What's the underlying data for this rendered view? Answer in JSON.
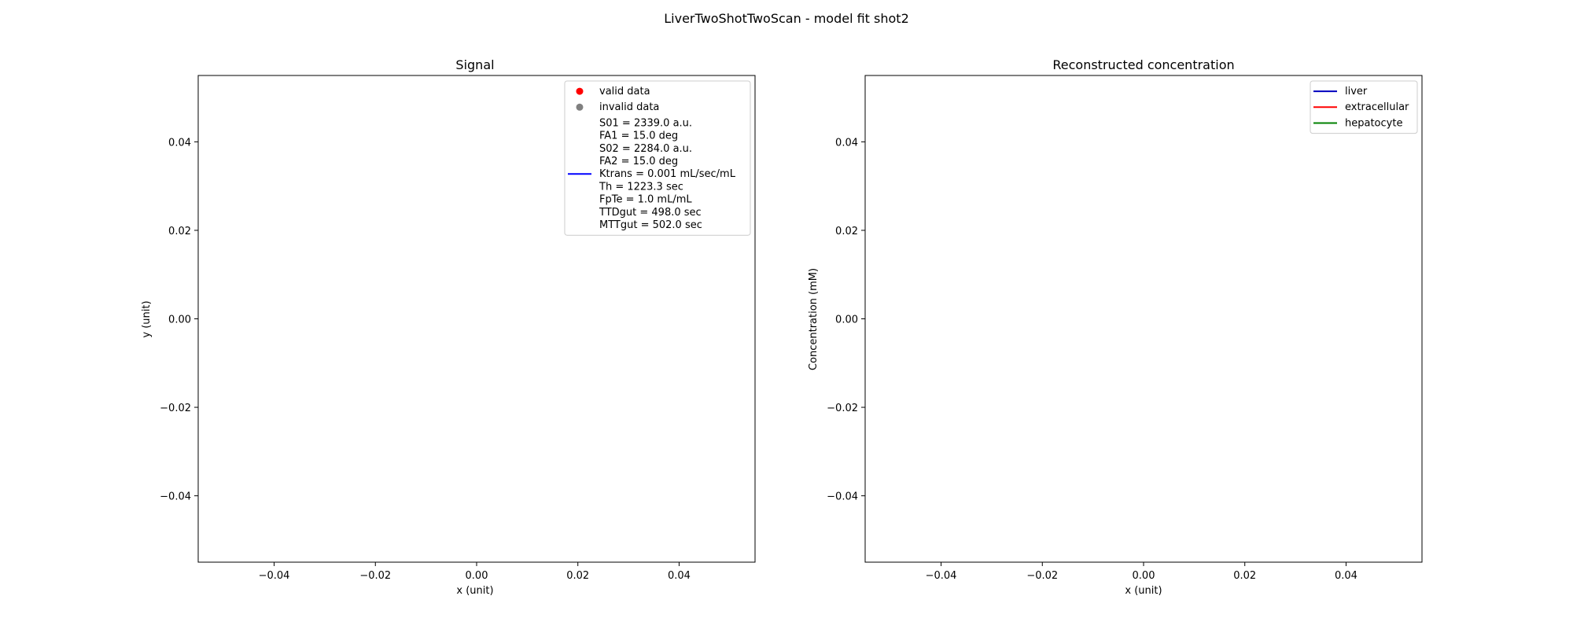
{
  "figure": {
    "suptitle": "LiverTwoShotTwoScan - model fit shot2"
  },
  "chart_data": [
    {
      "type": "scatter",
      "title": "Signal",
      "xlabel": "x (unit)",
      "ylabel": "y (unit)",
      "xlim": [
        -0.055,
        0.055
      ],
      "ylim": [
        -0.055,
        0.055
      ],
      "xticks": [
        -0.04,
        -0.02,
        0.0,
        0.02,
        0.04
      ],
      "yticks": [
        -0.04,
        -0.02,
        0.0,
        0.02,
        0.04
      ],
      "xtick_labels": [
        "−0.04",
        "−0.02",
        "0.00",
        "0.02",
        "0.04"
      ],
      "ytick_labels": [
        "−0.04",
        "−0.02",
        "0.00",
        "0.02",
        "0.04"
      ],
      "grid": false,
      "legend_position": "top-right",
      "series": [
        {
          "name": "valid data",
          "marker": "dot",
          "color": "#ff0000",
          "x": [],
          "y": []
        },
        {
          "name": "invalid data",
          "marker": "dot",
          "color": "#808080",
          "x": [],
          "y": []
        },
        {
          "name": "S01 = 2339.0 a.u.\nFA1 = 15.0 deg\nS02 = 2284.0 a.u.\nFA2 = 15.0 deg\nKtrans = 0.001 mL/sec/mL\nTh = 1223.3 sec\nFpTe = 1.0 mL/mL\nTTDgut = 498.0 sec\nMTTgut = 502.0 sec",
          "marker": "line",
          "color": "#0000ff",
          "x": [],
          "y": []
        }
      ]
    },
    {
      "type": "line",
      "title": "Reconstructed concentration",
      "xlabel": "x (unit)",
      "ylabel": "Concentration (mM)",
      "xlim": [
        -0.055,
        0.055
      ],
      "ylim": [
        -0.055,
        0.055
      ],
      "xticks": [
        -0.04,
        -0.02,
        0.0,
        0.02,
        0.04
      ],
      "yticks": [
        -0.04,
        -0.02,
        0.0,
        0.02,
        0.04
      ],
      "xtick_labels": [
        "−0.04",
        "−0.02",
        "0.00",
        "0.02",
        "0.04"
      ],
      "ytick_labels": [
        "−0.04",
        "−0.02",
        "0.00",
        "0.02",
        "0.04"
      ],
      "grid": false,
      "legend_position": "top-right",
      "series": [
        {
          "name": "liver",
          "marker": "line",
          "color": "#0000bf",
          "x": [],
          "y": []
        },
        {
          "name": "extracellular",
          "marker": "line",
          "color": "#ff0000",
          "x": [],
          "y": []
        },
        {
          "name": "hepatocyte",
          "marker": "line",
          "color": "#008000",
          "x": [],
          "y": []
        }
      ]
    }
  ]
}
